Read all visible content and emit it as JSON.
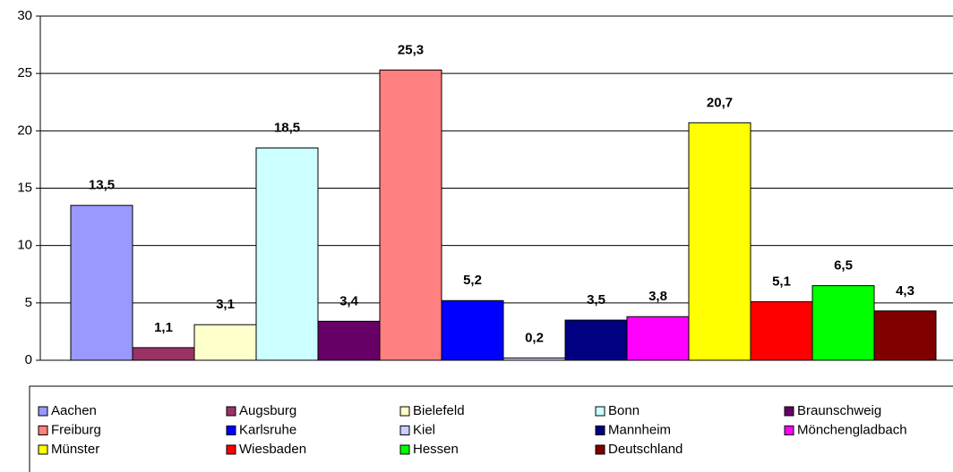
{
  "chart_data": {
    "type": "bar",
    "series": [
      {
        "name": "Aachen",
        "color": "#9999ff",
        "values": [
          13.5
        ],
        "value_labels": [
          "13,5"
        ]
      },
      {
        "name": "Augsburg",
        "color": "#993366",
        "values": [
          1.1
        ],
        "value_labels": [
          "1,1"
        ]
      },
      {
        "name": "Bielefeld",
        "color": "#ffffcc",
        "values": [
          3.1
        ],
        "value_labels": [
          "3,1"
        ]
      },
      {
        "name": "Bonn",
        "color": "#ccffff",
        "values": [
          18.5
        ],
        "value_labels": [
          "18,5"
        ]
      },
      {
        "name": "Braunschweig",
        "color": "#660066",
        "values": [
          3.4
        ],
        "value_labels": [
          "3,4"
        ]
      },
      {
        "name": "Freiburg",
        "color": "#ff8080",
        "values": [
          25.3
        ],
        "value_labels": [
          "25,3"
        ]
      },
      {
        "name": "Karlsruhe",
        "color": "#0000ff",
        "values": [
          5.2
        ],
        "value_labels": [
          "5,2"
        ]
      },
      {
        "name": "Kiel",
        "color": "#ccccff",
        "values": [
          0.2
        ],
        "value_labels": [
          "0,2"
        ]
      },
      {
        "name": "Mannheim",
        "color": "#000080",
        "values": [
          3.5
        ],
        "value_labels": [
          "3,5"
        ]
      },
      {
        "name": "Mönchengladbach",
        "color": "#ff00ff",
        "values": [
          3.8
        ],
        "value_labels": [
          "3,8"
        ]
      },
      {
        "name": "Münster",
        "color": "#ffff00",
        "values": [
          20.7
        ],
        "value_labels": [
          "20,7"
        ]
      },
      {
        "name": "Wiesbaden",
        "color": "#ff0000",
        "values": [
          5.1
        ],
        "value_labels": [
          "5,1"
        ]
      },
      {
        "name": "Hessen",
        "color": "#00ff00",
        "values": [
          6.5
        ],
        "value_labels": [
          "6,5"
        ]
      },
      {
        "name": "Deutschland",
        "color": "#800000",
        "values": [
          4.3
        ],
        "value_labels": [
          "4,3"
        ]
      }
    ],
    "ylim": [
      0,
      30
    ],
    "yticks": [
      0,
      5,
      10,
      15,
      20,
      25,
      30
    ],
    "grid": true,
    "legend": "bottom"
  }
}
